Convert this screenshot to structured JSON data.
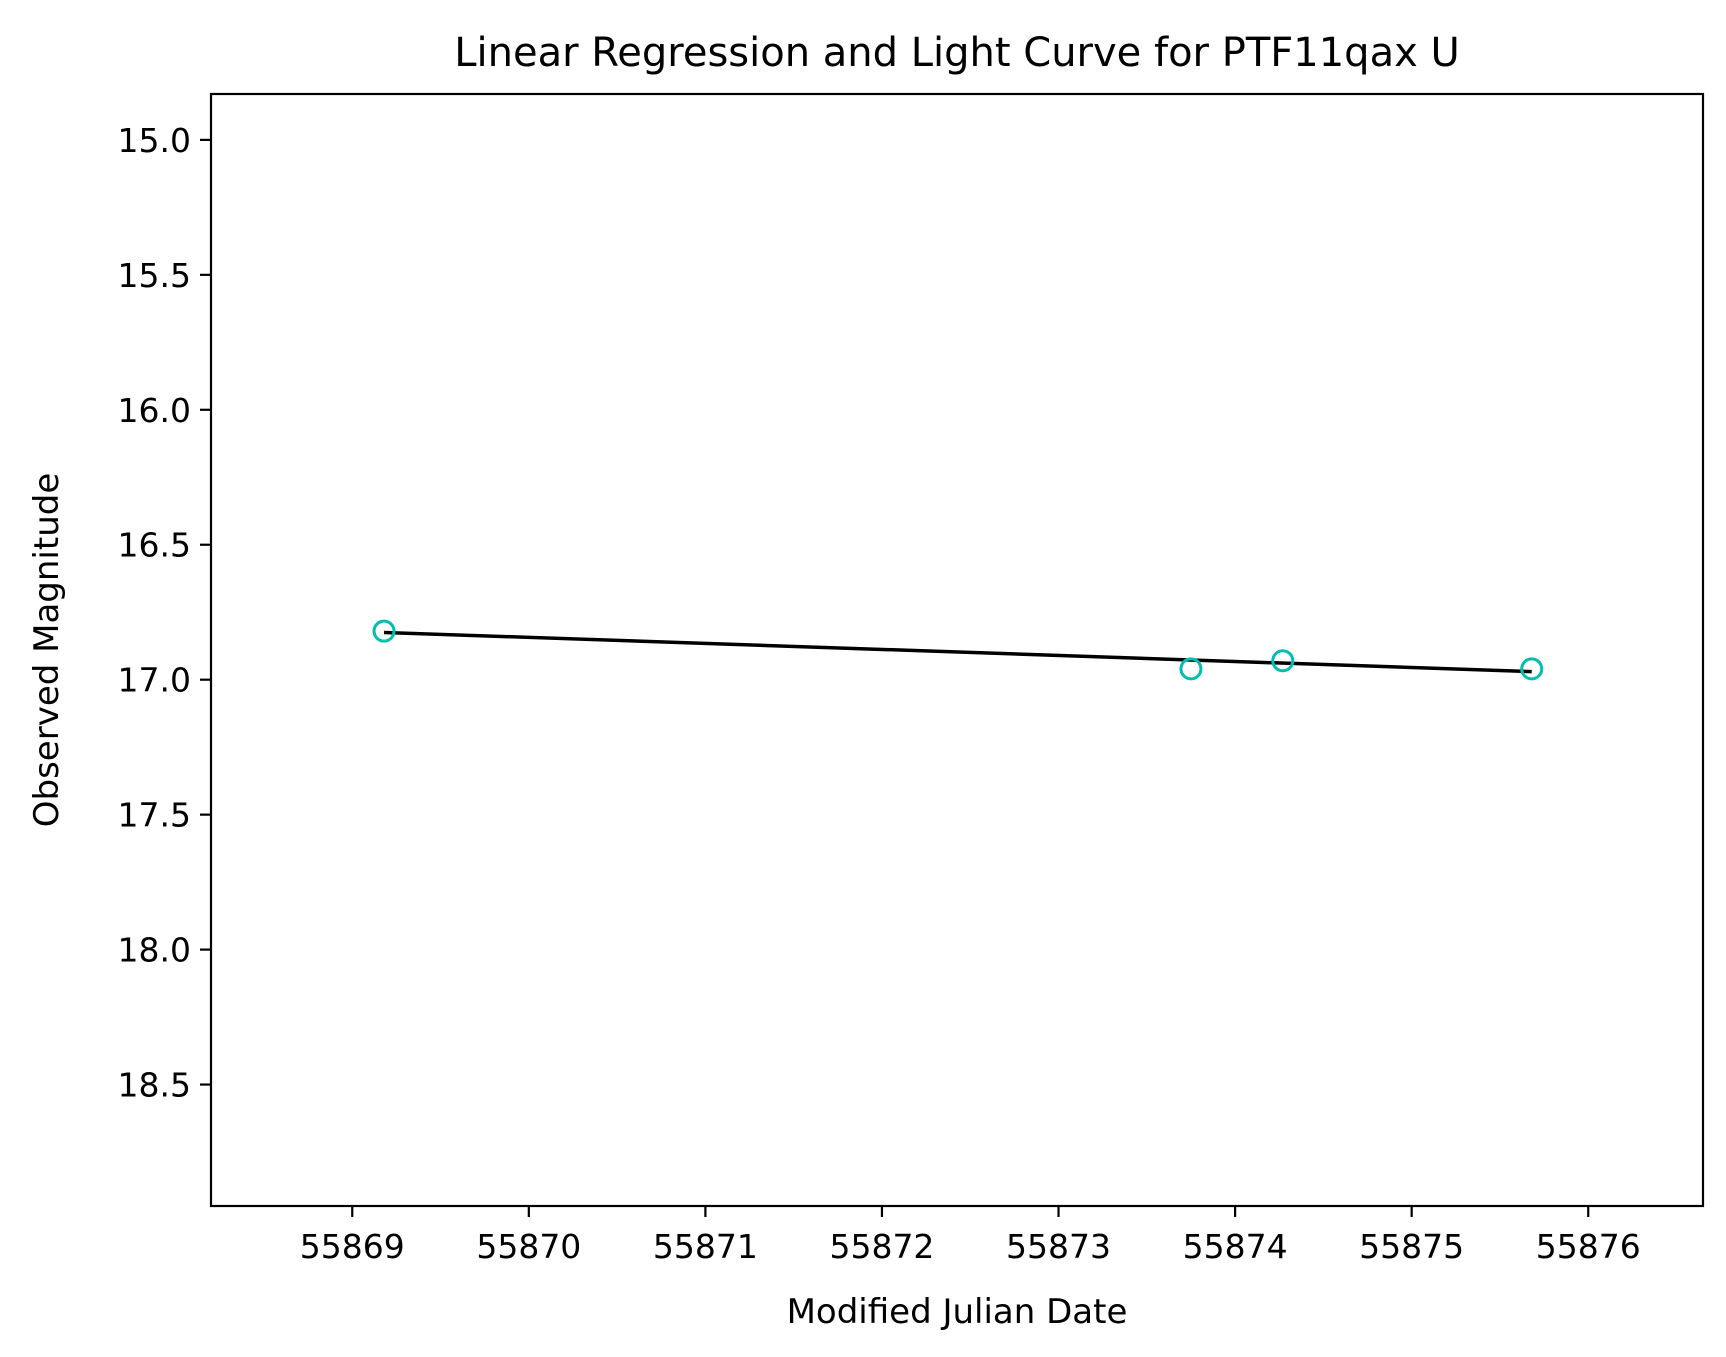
{
  "chart_data": {
    "type": "scatter",
    "title": "Linear Regression and Light Curve for PTF11qax U",
    "xlabel": "Modified Julian Date",
    "ylabel": "Observed Magnitude",
    "xlim": [
      55868.2,
      55876.65
    ],
    "ylim": [
      18.95,
      14.83
    ],
    "y_inverted": true,
    "grid": false,
    "xticks": [
      55869,
      55870,
      55871,
      55872,
      55873,
      55874,
      55875,
      55876
    ],
    "xtick_labels": [
      "55869",
      "55870",
      "55871",
      "55872",
      "55873",
      "55874",
      "55875",
      "55876"
    ],
    "yticks": [
      15.0,
      15.5,
      16.0,
      16.5,
      17.0,
      17.5,
      18.0,
      18.5
    ],
    "ytick_labels": [
      "15.0",
      "15.5",
      "16.0",
      "16.5",
      "17.0",
      "17.5",
      "18.0",
      "18.5"
    ],
    "points": {
      "x": [
        55869.18,
        55873.75,
        55874.27,
        55875.68
      ],
      "y": [
        16.82,
        16.96,
        16.93,
        16.96
      ],
      "color": "#00bfb0"
    },
    "regression_line": {
      "x": [
        55869.18,
        55875.68
      ],
      "y": [
        16.825,
        16.97
      ],
      "color": "#000000"
    }
  }
}
